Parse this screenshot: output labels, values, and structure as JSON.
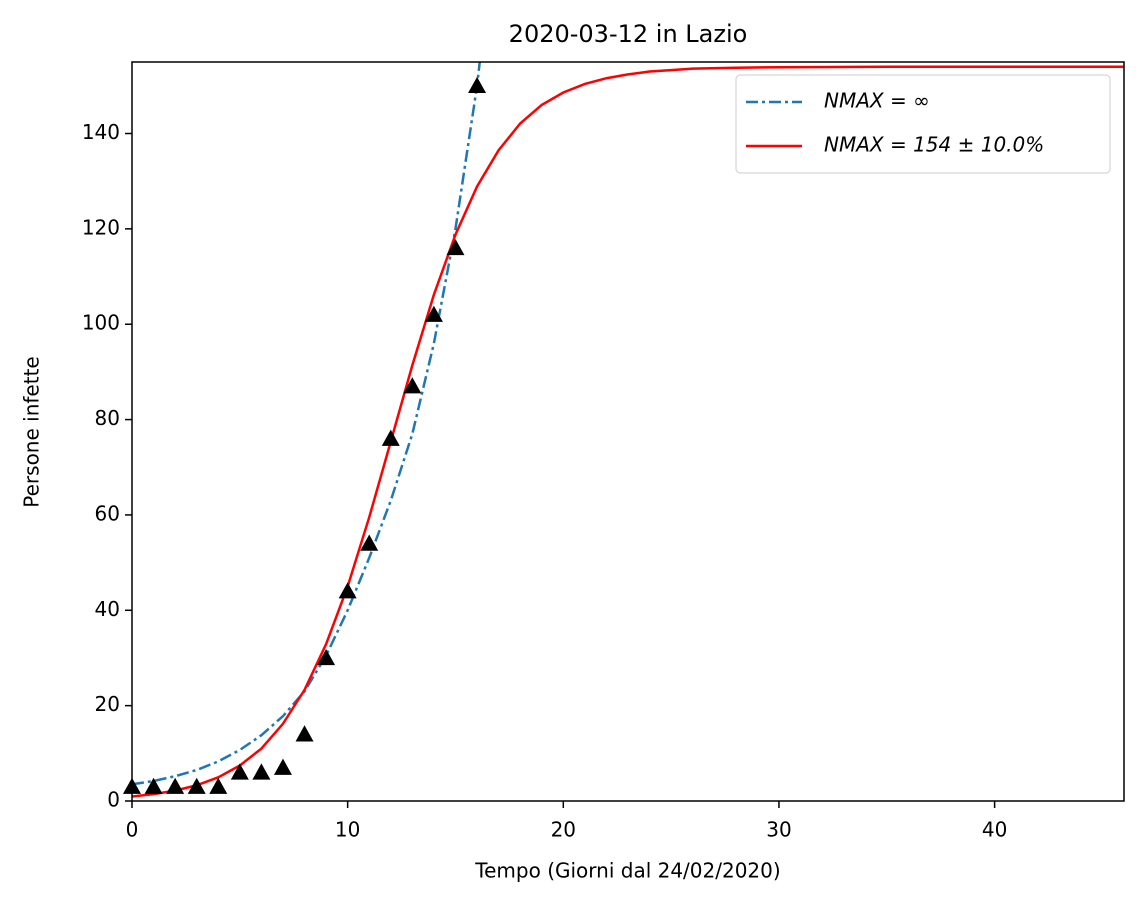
{
  "chart_data": {
    "type": "line",
    "title": "2020-03-12 in Lazio",
    "x_label": "Tempo (Giorni dal 24/02/2020)",
    "y_label": "Persone infette",
    "xlim": [
      0,
      46
    ],
    "ylim": [
      0,
      155
    ],
    "xticks": [
      0,
      10,
      20,
      30,
      40
    ],
    "yticks": [
      0,
      20,
      40,
      60,
      80,
      100,
      120,
      140
    ],
    "legend": "upper right",
    "series": [
      {
        "name": "NMAX = ∞",
        "color": "#1f77b4",
        "style": "dashdot",
        "x": [
          0,
          1,
          2,
          3,
          4,
          5,
          6,
          7,
          8,
          9,
          10,
          11,
          12,
          13,
          14,
          15,
          16,
          16.2
        ],
        "values": [
          3.5,
          4.2,
          5.2,
          6.5,
          8.3,
          10.7,
          13.8,
          17.8,
          23,
          30.5,
          40,
          51,
          63,
          77,
          96,
          120,
          150,
          158
        ]
      },
      {
        "name": "NMAX = 154 ± 10.0%",
        "color": "#ff0000",
        "style": "solid",
        "x": [
          0,
          1,
          2,
          3,
          4,
          5,
          6,
          7,
          8,
          9,
          10,
          11,
          12,
          13,
          14,
          15,
          16,
          17,
          18,
          19,
          20,
          21,
          22,
          23,
          24,
          25,
          26,
          28,
          30,
          35,
          40,
          46
        ],
        "values": [
          0.95,
          1.44,
          2.18,
          3.3,
          4.97,
          7.44,
          11,
          16.2,
          23.3,
          32.9,
          45,
          59.5,
          75.4,
          91.4,
          106.2,
          118.8,
          128.9,
          136.5,
          142.1,
          146,
          148.6,
          150.4,
          151.6,
          152.4,
          153,
          153.3,
          153.6,
          153.8,
          153.9,
          154,
          154,
          154
        ]
      },
      {
        "type": "scatter",
        "marker": "triangle",
        "color": "#000000",
        "x": [
          0,
          1,
          2,
          3,
          4,
          5,
          6,
          7,
          8,
          9,
          10,
          11,
          12,
          13,
          14,
          15,
          16
        ],
        "values": [
          3,
          3,
          3,
          3,
          3,
          6,
          6,
          7,
          14,
          30,
          44,
          54,
          76,
          87,
          102,
          116,
          150
        ]
      }
    ]
  }
}
